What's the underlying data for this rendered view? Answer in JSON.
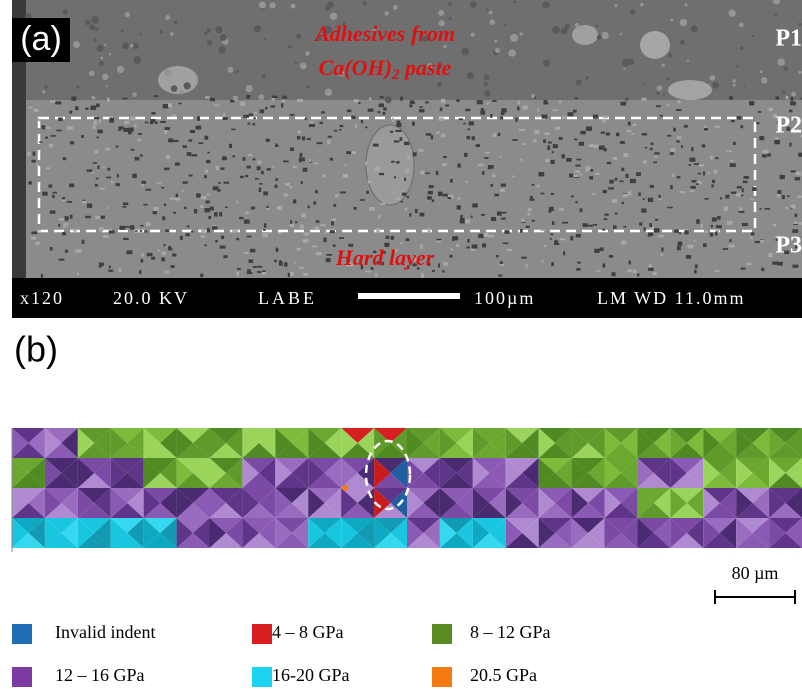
{
  "panel_a": {
    "label": "(a)",
    "annotation_top": {
      "line1": "Adhesives from",
      "line2_main": "Ca(OH)",
      "line2_sub": "2",
      "line2_end": " paste"
    },
    "annotation_bottom": "Hard layer",
    "layer_labels": [
      "P1",
      "P2",
      "P3"
    ],
    "info_bar": [
      "x120",
      "20.0 KV",
      "LABE",
      "100µm",
      "LM WD 11.0mm"
    ]
  },
  "panel_b": {
    "label": "(b)",
    "scale": "80 µm",
    "legend": [
      {
        "name": "Invalid indent",
        "color": "#1f6db5"
      },
      {
        "name": "4 – 8 GPa",
        "color": "#d81e1e"
      },
      {
        "name": "8 – 12 GPa",
        "color": "#5b8c23"
      },
      {
        "name": "12 – 16 GPa",
        "color": "#7d3aa3"
      },
      {
        "name": "16-20 GPa",
        "color": "#19d3ef"
      },
      {
        "name": "20.5 GPa",
        "color": "#f47a12"
      }
    ]
  }
}
